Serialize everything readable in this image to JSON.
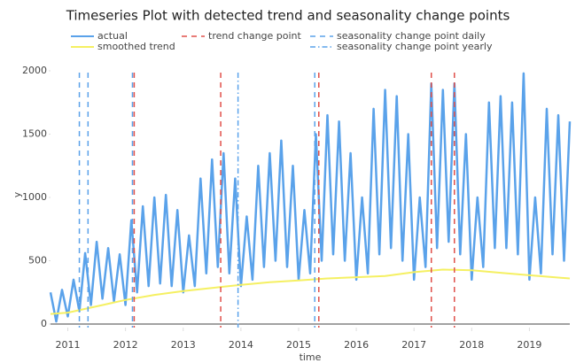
{
  "chart_data": {
    "type": "line",
    "title": "Timeseries Plot with detected trend and seasonality change points",
    "x_label": "time",
    "y_label": "y",
    "xlim": [
      2010.7,
      2019.7
    ],
    "ylim": [
      -28,
      2070
    ],
    "xticks": [
      2011,
      2012,
      2013,
      2014,
      2015,
      2016,
      2017,
      2018,
      2019
    ],
    "yticks": [
      0,
      500,
      1000,
      1500,
      2000
    ],
    "grid": false,
    "legend": "top",
    "series": [
      {
        "name": "actual",
        "color": "#5aa2ea",
        "x": [
          2010.7,
          2010.8,
          2010.9,
          2011.0,
          2011.1,
          2011.2,
          2011.3,
          2011.4,
          2011.5,
          2011.6,
          2011.7,
          2011.8,
          2011.9,
          2012.0,
          2012.1,
          2012.2,
          2012.3,
          2012.4,
          2012.5,
          2012.6,
          2012.7,
          2012.8,
          2012.9,
          2013.0,
          2013.1,
          2013.2,
          2013.3,
          2013.4,
          2013.5,
          2013.6,
          2013.7,
          2013.8,
          2013.9,
          2014.0,
          2014.1,
          2014.2,
          2014.3,
          2014.4,
          2014.5,
          2014.6,
          2014.7,
          2014.8,
          2014.9,
          2015.0,
          2015.1,
          2015.2,
          2015.3,
          2015.4,
          2015.5,
          2015.6,
          2015.7,
          2015.8,
          2015.9,
          2016.0,
          2016.1,
          2016.2,
          2016.3,
          2016.4,
          2016.5,
          2016.6,
          2016.7,
          2016.8,
          2016.9,
          2017.0,
          2017.1,
          2017.2,
          2017.3,
          2017.4,
          2017.5,
          2017.6,
          2017.7,
          2017.8,
          2017.9,
          2018.0,
          2018.1,
          2018.2,
          2018.3,
          2018.4,
          2018.5,
          2018.6,
          2018.7,
          2018.8,
          2018.9,
          2019.0,
          2019.1,
          2019.2,
          2019.3,
          2019.4,
          2019.5,
          2019.6,
          2019.7
        ],
        "values": [
          250,
          20,
          270,
          60,
          350,
          100,
          560,
          150,
          650,
          200,
          600,
          180,
          550,
          150,
          820,
          250,
          930,
          300,
          1000,
          320,
          1020,
          300,
          900,
          250,
          700,
          300,
          1150,
          400,
          1300,
          450,
          1350,
          400,
          1150,
          300,
          850,
          350,
          1250,
          450,
          1350,
          500,
          1450,
          450,
          1250,
          350,
          900,
          400,
          1500,
          500,
          1650,
          550,
          1600,
          500,
          1350,
          350,
          1000,
          400,
          1700,
          550,
          1850,
          600,
          1800,
          500,
          1500,
          350,
          1000,
          450,
          1900,
          600,
          1850,
          650,
          1900,
          550,
          1500,
          350,
          1000,
          450,
          1750,
          600,
          1800,
          600,
          1750,
          550,
          1980,
          350,
          1000,
          400,
          1700,
          550,
          1650,
          500,
          1600
        ]
      },
      {
        "name": "smoothed trend",
        "color": "#f5f062",
        "x": [
          2010.7,
          2011.0,
          2011.5,
          2012.0,
          2012.5,
          2013.0,
          2013.5,
          2014.0,
          2014.5,
          2015.0,
          2015.5,
          2016.0,
          2016.5,
          2017.0,
          2017.5,
          2018.0,
          2018.5,
          2019.0,
          2019.7
        ],
        "values": [
          80,
          90,
          140,
          190,
          230,
          260,
          285,
          310,
          330,
          345,
          360,
          370,
          380,
          410,
          430,
          425,
          405,
          385,
          360
        ]
      }
    ],
    "change_points": [
      {
        "name": "trend change point",
        "color": "#e0504a",
        "dash": "6,5",
        "x": [
          2012.15,
          2013.65,
          2015.35,
          2017.3,
          2017.7
        ]
      },
      {
        "name": "seasonality change point daily",
        "color": "#5aa2ea",
        "dash": "6,5",
        "x": [
          2011.2,
          2011.35,
          2012.12,
          2015.28
        ]
      },
      {
        "name": "seasonality change point yearly",
        "color": "#5aa2ea",
        "dash": "6,3,1.5,3",
        "x": [
          2013.95
        ]
      }
    ]
  }
}
